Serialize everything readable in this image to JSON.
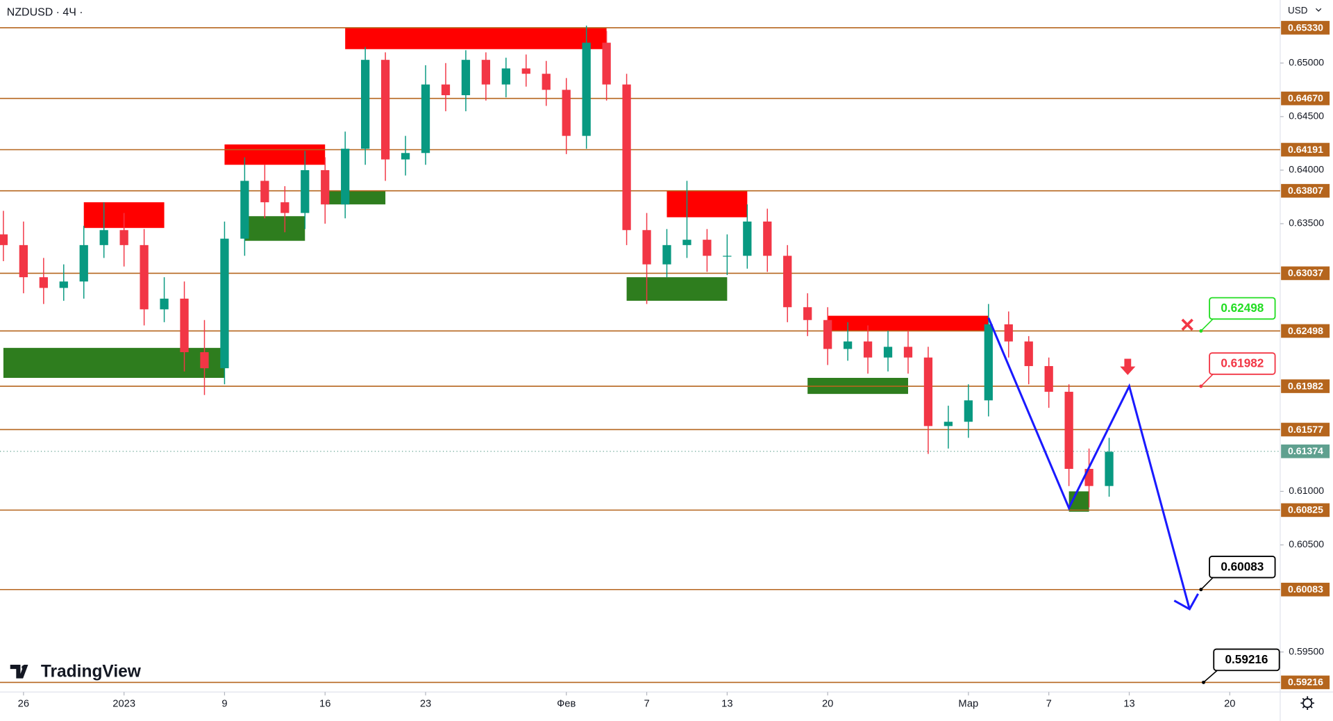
{
  "chart_data": {
    "type": "candlestick",
    "title": "NZDUSD · 4Ч ·",
    "currency": "USD",
    "logo": "TradingView",
    "x": [
      "2022-12-23",
      "2022-12-26",
      "2022-12-27",
      "2022-12-28",
      "2022-12-29",
      "2022-12-30",
      "2023-01-02",
      "2023-01-03",
      "2023-01-04",
      "2023-01-05",
      "2023-01-06",
      "2023-01-09",
      "2023-01-10",
      "2023-01-11",
      "2023-01-12",
      "2023-01-13",
      "2023-01-16",
      "2023-01-17",
      "2023-01-18",
      "2023-01-19",
      "2023-01-20",
      "2023-01-23",
      "2023-01-24",
      "2023-01-25",
      "2023-01-26",
      "2023-01-27",
      "2023-01-30",
      "2023-01-31",
      "2023-02-01",
      "2023-02-02",
      "2023-02-03",
      "2023-02-06",
      "2023-02-07",
      "2023-02-08",
      "2023-02-09",
      "2023-02-10",
      "2023-02-13",
      "2023-02-14",
      "2023-02-15",
      "2023-02-16",
      "2023-02-17",
      "2023-02-20",
      "2023-02-21",
      "2023-02-22",
      "2023-02-23",
      "2023-02-24",
      "2023-02-27",
      "2023-02-28",
      "2023-03-01",
      "2023-03-02",
      "2023-03-03",
      "2023-03-06",
      "2023-03-07",
      "2023-03-08",
      "2023-03-09",
      "2023-03-10"
    ],
    "open": [
      0.634,
      0.633,
      0.63,
      0.629,
      0.6296,
      0.633,
      0.6344,
      0.633,
      0.627,
      0.628,
      0.623,
      0.6215,
      0.6336,
      0.639,
      0.637,
      0.636,
      0.64,
      0.6368,
      0.642,
      0.6503,
      0.641,
      0.6416,
      0.648,
      0.647,
      0.6503,
      0.648,
      0.6495,
      0.649,
      0.6475,
      0.6432,
      0.6519,
      0.648,
      0.6344,
      0.6312,
      0.633,
      0.6335,
      0.632,
      0.632,
      0.6352,
      0.632,
      0.6272,
      0.626,
      0.6233,
      0.624,
      0.6225,
      0.6235,
      0.6225,
      0.6161,
      0.6165,
      0.6185,
      0.6256,
      0.624,
      0.6217,
      0.6193,
      0.6121,
      0.6105
    ],
    "high": [
      0.6362,
      0.6352,
      0.6318,
      0.6312,
      0.6348,
      0.637,
      0.636,
      0.6345,
      0.63,
      0.6296,
      0.626,
      0.6352,
      0.6412,
      0.6405,
      0.6385,
      0.6418,
      0.6412,
      0.6436,
      0.6515,
      0.651,
      0.6432,
      0.6498,
      0.65,
      0.6512,
      0.651,
      0.6505,
      0.6508,
      0.6502,
      0.6486,
      0.6535,
      0.653,
      0.649,
      0.636,
      0.6345,
      0.639,
      0.6345,
      0.634,
      0.6368,
      0.6364,
      0.633,
      0.6285,
      0.6272,
      0.6258,
      0.6255,
      0.625,
      0.625,
      0.6235,
      0.618,
      0.62,
      0.6275,
      0.6268,
      0.6245,
      0.6225,
      0.62,
      0.614,
      0.615
    ],
    "low": [
      0.6315,
      0.6285,
      0.6275,
      0.6278,
      0.628,
      0.6318,
      0.631,
      0.6255,
      0.6258,
      0.6212,
      0.619,
      0.62,
      0.632,
      0.6355,
      0.6342,
      0.6345,
      0.635,
      0.6355,
      0.6405,
      0.639,
      0.6395,
      0.6405,
      0.6455,
      0.6455,
      0.6465,
      0.6468,
      0.6478,
      0.646,
      0.6415,
      0.642,
      0.6465,
      0.633,
      0.6275,
      0.63,
      0.6318,
      0.6305,
      0.6302,
      0.6308,
      0.6305,
      0.6258,
      0.6245,
      0.6218,
      0.6222,
      0.621,
      0.6212,
      0.621,
      0.6135,
      0.614,
      0.615,
      0.617,
      0.6225,
      0.62,
      0.6178,
      0.6105,
      0.6085,
      0.6095
    ],
    "close": [
      0.633,
      0.63,
      0.629,
      0.6296,
      0.633,
      0.6344,
      0.633,
      0.627,
      0.628,
      0.623,
      0.6215,
      0.6336,
      0.639,
      0.637,
      0.636,
      0.64,
      0.6368,
      0.642,
      0.6503,
      0.641,
      0.6416,
      0.648,
      0.647,
      0.6503,
      0.648,
      0.6495,
      0.649,
      0.6475,
      0.6432,
      0.6519,
      0.648,
      0.6344,
      0.6312,
      0.633,
      0.6335,
      0.632,
      0.632,
      0.6352,
      0.632,
      0.6272,
      0.626,
      0.6233,
      0.624,
      0.6225,
      0.6235,
      0.6225,
      0.6161,
      0.6165,
      0.6185,
      0.6256,
      0.624,
      0.6217,
      0.6193,
      0.6121,
      0.6105,
      0.6137
    ],
    "up_color": "#089981",
    "down_color": "#f23645",
    "xlim": [
      "2022-12-23",
      "2023-03-22"
    ],
    "xticks": [
      {
        "value": "2022-12-26",
        "label": "26"
      },
      {
        "value": "2023-01-01",
        "label": "2023"
      },
      {
        "value": "2023-01-09",
        "label": "9"
      },
      {
        "value": "2023-01-16",
        "label": "16"
      },
      {
        "value": "2023-01-23",
        "label": "23"
      },
      {
        "value": "2023-02-01",
        "label": "Фев"
      },
      {
        "value": "2023-02-07",
        "label": "7"
      },
      {
        "value": "2023-02-13",
        "label": "13"
      },
      {
        "value": "2023-02-20",
        "label": "20"
      },
      {
        "value": "2023-03-01",
        "label": "Мар"
      },
      {
        "value": "2023-03-07",
        "label": "7"
      },
      {
        "value": "2023-03-13",
        "label": "13"
      },
      {
        "value": "2023-03-20",
        "label": "20"
      }
    ],
    "ylim": [
      0.59126,
      0.65589
    ],
    "yticks": [
      {
        "value": 0.65,
        "label": "0.65000"
      },
      {
        "value": 0.645,
        "label": "0.64500"
      },
      {
        "value": 0.64,
        "label": "0.64000"
      },
      {
        "value": 0.635,
        "label": "0.63500"
      },
      {
        "value": 0.61,
        "label": "0.61000"
      },
      {
        "value": 0.605,
        "label": "0.60500"
      },
      {
        "value": 0.595,
        "label": "0.59500"
      }
    ],
    "grid": false,
    "levels": [
      {
        "value": 0.6533,
        "label": "0.65330"
      },
      {
        "value": 0.6467,
        "label": "0.64670"
      },
      0.64191,
      0.63807,
      0.63037,
      0.62498,
      0.61982,
      0.61577,
      0.60825,
      0.60083,
      0.59216
    ],
    "level_color": "#b5651d",
    "last_price": 0.61374,
    "last_price_color": "#5fa08f",
    "zones": [
      {
        "x": [
          "2022-12-29",
          "2023-01-04"
        ],
        "range": [
          0.6346,
          0.637
        ],
        "color": "#ff0000"
      },
      {
        "x": [
          "2022-12-23",
          "2023-01-09"
        ],
        "range": [
          0.6206,
          0.6234
        ],
        "color": "#2e7d1e"
      },
      {
        "x": [
          "2023-01-09",
          "2023-01-16"
        ],
        "range": [
          0.6405,
          0.6424
        ],
        "color": "#ff0000"
      },
      {
        "x": [
          "2023-01-10",
          "2023-01-13"
        ],
        "range": [
          0.6334,
          0.6357
        ],
        "color": "#2e7d1e"
      },
      {
        "x": [
          "2023-01-16",
          "2023-01-19"
        ],
        "range": [
          0.6368,
          0.6381
        ],
        "color": "#2e7d1e"
      },
      {
        "x": [
          "2023-01-17",
          "2023-02-03"
        ],
        "range": [
          0.6513,
          0.6533
        ],
        "color": "#ff0000"
      },
      {
        "x": [
          "2023-02-08",
          "2023-02-14"
        ],
        "range": [
          0.6356,
          0.6381
        ],
        "color": "#ff0000"
      },
      {
        "x": [
          "2023-02-06",
          "2023-02-13"
        ],
        "range": [
          0.6278,
          0.63
        ],
        "color": "#2e7d1e"
      },
      {
        "x": [
          "2023-02-20",
          "2023-03-02"
        ],
        "range": [
          0.625,
          0.6264
        ],
        "color": "#ff0000"
      },
      {
        "x": [
          "2023-02-17",
          "2023-02-24"
        ],
        "range": [
          0.6191,
          0.6206
        ],
        "color": "#2e7d1e"
      },
      {
        "x": [
          "2023-03-08",
          "2023-03-09"
        ],
        "range": [
          0.6081,
          0.61
        ],
        "color": "#2e7d1e"
      }
    ],
    "forecast": {
      "x": [
        "2023-03-02",
        "2023-03-08",
        "2023-03-13",
        "2023-03-16"
      ],
      "values": [
        0.6262,
        0.60845,
        0.61982,
        0.599
      ],
      "color": "#1a1aff"
    },
    "callouts": [
      {
        "value": 0.62498,
        "color": "#22dd22"
      },
      {
        "value": 0.61982,
        "color": "#f23645"
      },
      {
        "value": 0.60083,
        "color": "#000000"
      },
      {
        "value": 0.59216,
        "color": "#000000"
      }
    ]
  }
}
